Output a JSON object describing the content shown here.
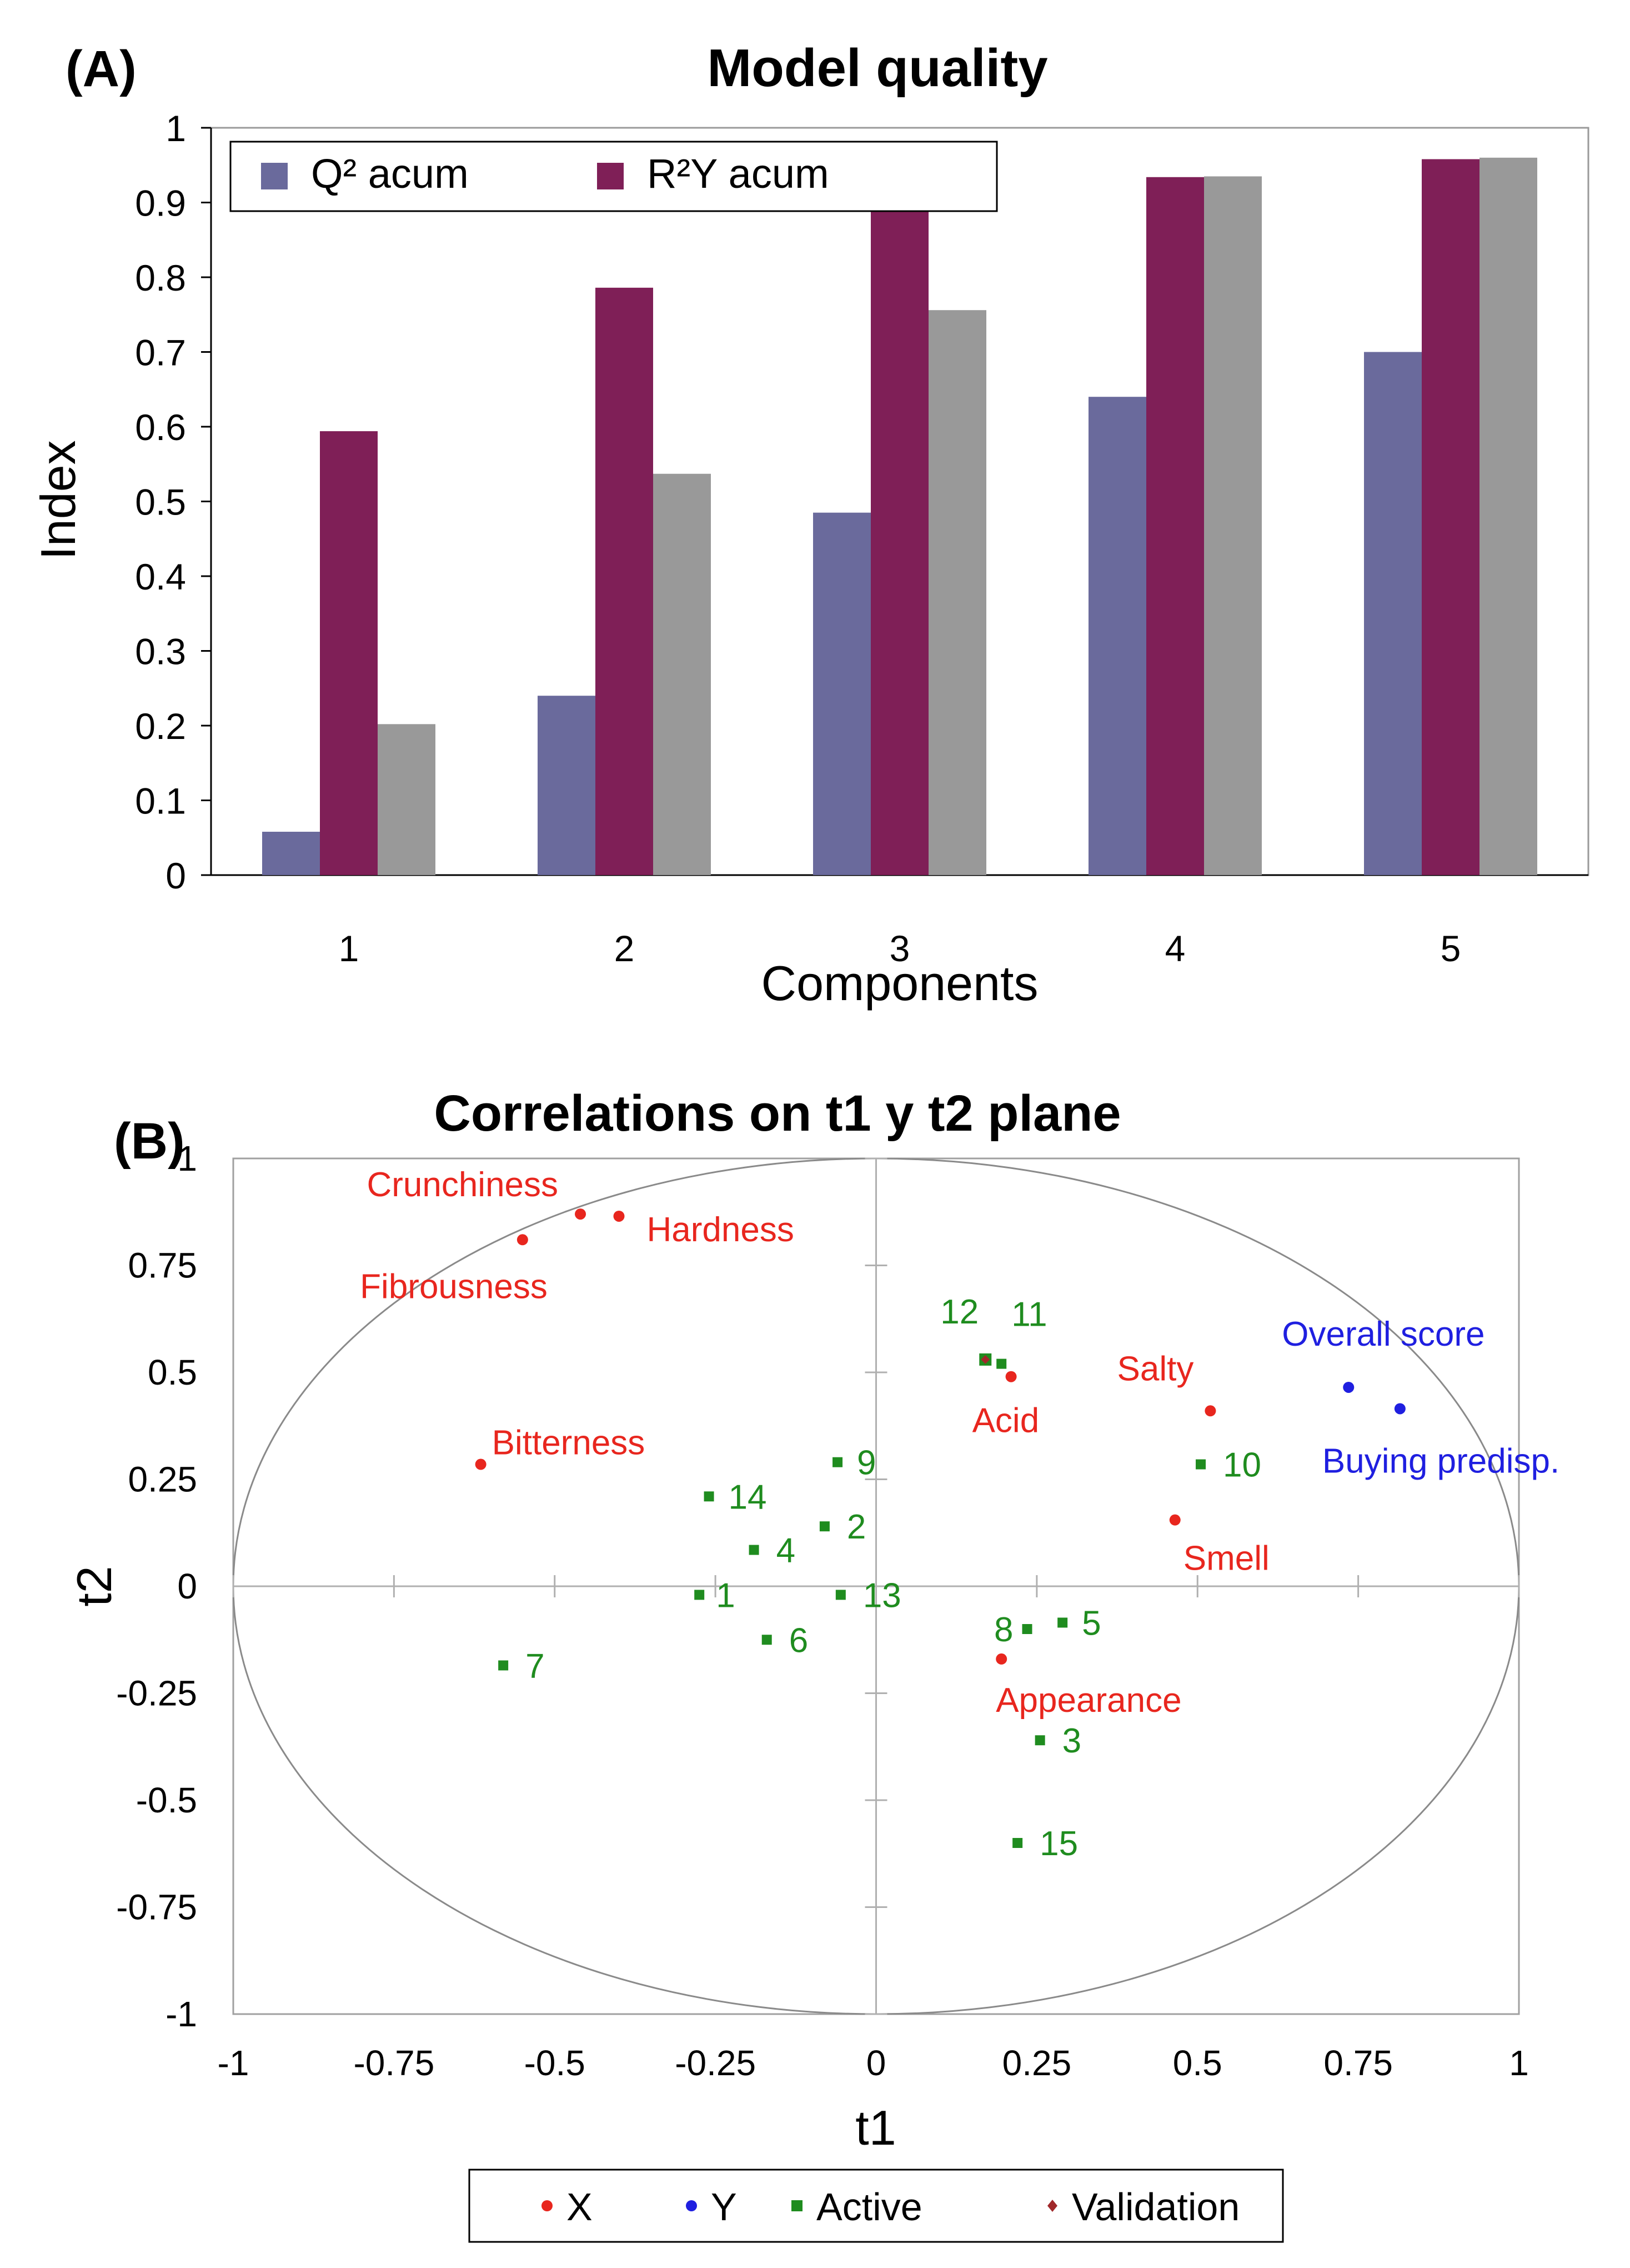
{
  "chart_data": [
    {
      "type": "bar",
      "panel_label": "(A)",
      "title": "Model quality",
      "xlabel": "Components",
      "ylabel": "Index",
      "ylim": [
        0,
        1
      ],
      "yticks": [
        "0",
        "0.1",
        "0.2",
        "0.3",
        "0.4",
        "0.5",
        "0.6",
        "0.7",
        "0.8",
        "0.9",
        "1"
      ],
      "categories": [
        "1",
        "2",
        "3",
        "4",
        "5"
      ],
      "grid": false,
      "legend_position": "top-left",
      "series": [
        {
          "name": "Q² acum",
          "color": "#6a6a9c",
          "values": [
            0.058,
            0.24,
            0.485,
            0.64,
            0.7
          ],
          "in_legend": true
        },
        {
          "name": "R²Y acum",
          "color": "#7f1f57",
          "values": [
            0.594,
            0.786,
            0.898,
            0.934,
            0.958
          ],
          "in_legend": true
        },
        {
          "name": "",
          "color": "#999999",
          "values": [
            0.202,
            0.537,
            0.756,
            0.935,
            0.96
          ],
          "in_legend": false
        }
      ]
    },
    {
      "type": "scatter",
      "panel_label": "(B)",
      "title": "Correlations on t1 y t2 plane",
      "xlabel": "t1",
      "ylabel": "t2",
      "xlim": [
        -1,
        1
      ],
      "ylim": [
        -1,
        1
      ],
      "xticks": [
        "-1",
        "-0.75",
        "-0.5",
        "-0.25",
        "0",
        "0.25",
        "0.5",
        "0.75",
        "1"
      ],
      "yticks": [
        "1",
        "0.75",
        "0.5",
        "0.25",
        "0",
        "-0.25",
        "-0.5",
        "-0.75",
        "-1"
      ],
      "grid": false,
      "unit_circle": true,
      "legend_position": "bottom",
      "legend": [
        {
          "label": "X",
          "color": "#e8261e",
          "marker": "circle"
        },
        {
          "label": "Y",
          "color": "#1f1fe0",
          "marker": "circle"
        },
        {
          "label": "Active",
          "color": "#1f8c1f",
          "marker": "square"
        },
        {
          "label": "Validation",
          "color": "#a0282a",
          "marker": "diamond"
        }
      ],
      "points": [
        {
          "label": "Crunchiness",
          "x": -0.46,
          "y": 0.87,
          "group": "X"
        },
        {
          "label": "Hardness",
          "x": -0.4,
          "y": 0.865,
          "group": "X"
        },
        {
          "label": "Fibrousness",
          "x": -0.55,
          "y": 0.81,
          "group": "X"
        },
        {
          "label": "Bitterness",
          "x": -0.615,
          "y": 0.285,
          "group": "X"
        },
        {
          "label": "Acid",
          "x": 0.21,
          "y": 0.49,
          "group": "X"
        },
        {
          "label": "Salty",
          "x": 0.52,
          "y": 0.41,
          "group": "X"
        },
        {
          "label": "Smell",
          "x": 0.465,
          "y": 0.155,
          "group": "X"
        },
        {
          "label": "Appearance",
          "x": 0.195,
          "y": -0.17,
          "group": "X"
        },
        {
          "label": "Overall score",
          "x": 0.735,
          "y": 0.465,
          "group": "Y"
        },
        {
          "label": "Buying predisp.",
          "x": 0.815,
          "y": 0.415,
          "group": "Y"
        },
        {
          "label": "12",
          "x": 0.17,
          "y": 0.53,
          "group": "Validation"
        },
        {
          "label": "11",
          "x": 0.195,
          "y": 0.52,
          "group": "Active"
        },
        {
          "label": "9",
          "x": -0.06,
          "y": 0.29,
          "group": "Active"
        },
        {
          "label": "10",
          "x": 0.505,
          "y": 0.285,
          "group": "Active"
        },
        {
          "label": "14",
          "x": -0.26,
          "y": 0.21,
          "group": "Active"
        },
        {
          "label": "2",
          "x": -0.08,
          "y": 0.14,
          "group": "Active"
        },
        {
          "label": "4",
          "x": -0.19,
          "y": 0.085,
          "group": "Active"
        },
        {
          "label": "1",
          "x": -0.275,
          "y": -0.02,
          "group": "Active"
        },
        {
          "label": "13",
          "x": -0.055,
          "y": -0.02,
          "group": "Active"
        },
        {
          "label": "6",
          "x": -0.17,
          "y": -0.125,
          "group": "Active"
        },
        {
          "label": "7",
          "x": -0.58,
          "y": -0.185,
          "group": "Active"
        },
        {
          "label": "8",
          "x": 0.235,
          "y": -0.1,
          "group": "Active"
        },
        {
          "label": "5",
          "x": 0.29,
          "y": -0.085,
          "group": "Active"
        },
        {
          "label": "3",
          "x": 0.255,
          "y": -0.36,
          "group": "Active"
        },
        {
          "label": "15",
          "x": 0.22,
          "y": -0.6,
          "group": "Active"
        }
      ]
    }
  ]
}
